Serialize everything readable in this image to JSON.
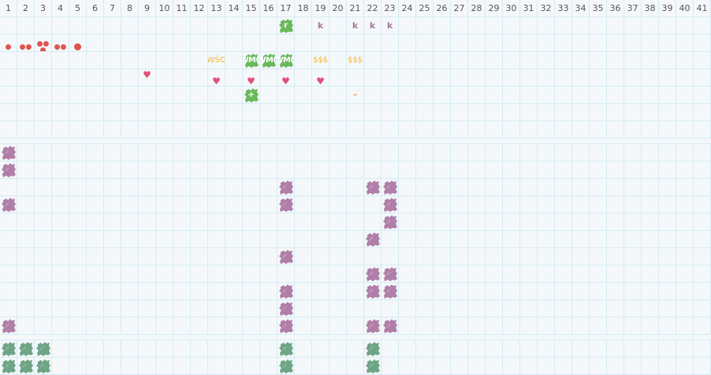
{
  "columns": [
    "1",
    "2",
    "3",
    "4",
    "5",
    "6",
    "7",
    "8",
    "9",
    "10",
    "11",
    "12",
    "13",
    "14",
    "15",
    "16",
    "17",
    "18",
    "19",
    "20",
    "21",
    "22",
    "23",
    "24",
    "25",
    "26",
    "27",
    "28",
    "29",
    "30",
    "31",
    "32",
    "33",
    "34",
    "35",
    "36",
    "37",
    "38",
    "39",
    "40",
    "41"
  ],
  "colors": {
    "purple_blob": "#b07fa8",
    "green_blob": "#69b85b",
    "teal_blob": "#6fa586",
    "drop": "#e0534f",
    "heart": "#e0507a",
    "orange": "#f5b335",
    "k": "#a9789e",
    "grid_line": "#d6ebf4",
    "background": "#f4f8fa"
  },
  "sections": [
    {
      "rows": [
        [
          {
            "col": 17,
            "type": "green",
            "text": "r"
          },
          {
            "col": 19,
            "type": "k",
            "text": "k"
          },
          {
            "col": 21,
            "type": "k",
            "text": "k"
          },
          {
            "col": 22,
            "type": "k",
            "text": "k"
          },
          {
            "col": 23,
            "type": "k",
            "text": "k"
          }
        ],
        [
          {
            "col": 1,
            "type": "drop",
            "count": 1
          },
          {
            "col": 2,
            "type": "drop",
            "count": 2
          },
          {
            "col": 3,
            "type": "drop",
            "count": 3
          },
          {
            "col": 4,
            "type": "drop",
            "count": 2
          },
          {
            "col": 5,
            "type": "dot"
          }
        ],
        [
          {
            "col": 13,
            "type": "orange",
            "text": "WŚO"
          },
          {
            "col": 15,
            "type": "green",
            "text": "WMO"
          },
          {
            "col": 16,
            "type": "green",
            "text": "WMO"
          },
          {
            "col": 17,
            "type": "green",
            "text": "WMO"
          },
          {
            "col": 19,
            "type": "orange",
            "text": "$$$"
          },
          {
            "col": 21,
            "type": "orange",
            "text": "$$$"
          }
        ],
        [
          {
            "col": 9,
            "type": "heart",
            "icon": "heart-icon"
          },
          {
            "col": 13,
            "type": "heart",
            "icon": "heart-icon"
          },
          {
            "col": 15,
            "type": "heart",
            "icon": "heart-icon"
          },
          {
            "col": 17,
            "type": "heart",
            "icon": "heart-icon"
          },
          {
            "col": 19,
            "type": "heart",
            "icon": "heart-icon"
          }
        ],
        [
          {
            "col": 15,
            "type": "green",
            "text": "+"
          },
          {
            "col": 21,
            "type": "dash",
            "text": "–"
          }
        ],
        [],
        []
      ]
    },
    {
      "rows": [
        [
          {
            "col": 1,
            "type": "purple"
          }
        ],
        [
          {
            "col": 1,
            "type": "purple"
          }
        ],
        [
          {
            "col": 17,
            "type": "purple"
          },
          {
            "col": 22,
            "type": "purple"
          },
          {
            "col": 23,
            "type": "purple"
          }
        ],
        [
          {
            "col": 1,
            "type": "purple"
          },
          {
            "col": 17,
            "type": "purple"
          },
          {
            "col": 23,
            "type": "purple"
          }
        ],
        [
          {
            "col": 23,
            "type": "purple"
          }
        ],
        [
          {
            "col": 22,
            "type": "purple"
          }
        ],
        [
          {
            "col": 17,
            "type": "purple"
          }
        ],
        [
          {
            "col": 22,
            "type": "purple"
          },
          {
            "col": 23,
            "type": "purple"
          }
        ],
        [
          {
            "col": 17,
            "type": "purple"
          },
          {
            "col": 22,
            "type": "purple"
          },
          {
            "col": 23,
            "type": "purple"
          }
        ],
        [
          {
            "col": 17,
            "type": "purple"
          }
        ],
        [
          {
            "col": 1,
            "type": "purple"
          },
          {
            "col": 17,
            "type": "purple"
          },
          {
            "col": 22,
            "type": "purple"
          },
          {
            "col": 23,
            "type": "purple"
          }
        ]
      ]
    },
    {
      "rows": [
        [
          {
            "col": 1,
            "type": "teal"
          },
          {
            "col": 2,
            "type": "teal"
          },
          {
            "col": 3,
            "type": "teal"
          },
          {
            "col": 17,
            "type": "teal"
          },
          {
            "col": 22,
            "type": "teal"
          }
        ],
        [
          {
            "col": 1,
            "type": "teal"
          },
          {
            "col": 2,
            "type": "teal"
          },
          {
            "col": 3,
            "type": "teal"
          },
          {
            "col": 17,
            "type": "teal"
          },
          {
            "col": 22,
            "type": "teal"
          }
        ]
      ]
    }
  ]
}
